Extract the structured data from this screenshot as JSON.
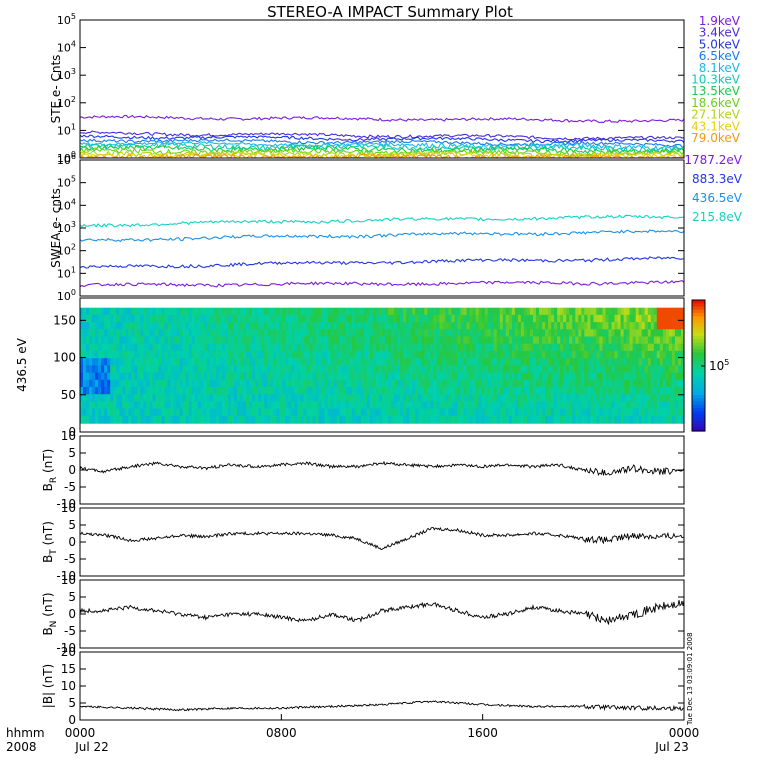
{
  "title": "STEREO-A IMPACT Summary Plot",
  "side_note": "Tue Dec 13 03:09:01 2008",
  "colors": {
    "ste": [
      "#7d1be0",
      "#4a2bd8",
      "#2236e0",
      "#1a7be6",
      "#18b9e8",
      "#12c9b7",
      "#1ec94a",
      "#6ad11a",
      "#b5d614",
      "#e7cf15",
      "#ef9a10",
      "#e25a10"
    ],
    "swea": [
      "#7d1be0",
      "#2236e0",
      "#1a92e8",
      "#14d2c2"
    ]
  },
  "time_axis": {
    "year_label": "hhmm",
    "year": "2008",
    "ticks": [
      {
        "label": "0000",
        "date": "Jul 22"
      },
      {
        "label": "0800",
        "date": ""
      },
      {
        "label": "1600",
        "date": ""
      },
      {
        "label": "0000",
        "date": "Jul 23"
      }
    ]
  },
  "chart_data": [
    {
      "type": "line",
      "name": "ste",
      "ylabel": "STE e- Cnts",
      "yscale": "log",
      "ylim": [
        1,
        100000
      ],
      "ytick_exponents": [
        "0",
        "1",
        "2",
        "3",
        "4",
        "5"
      ],
      "series": [
        {
          "name": "1.9keV",
          "level": 30,
          "end_level": 22
        },
        {
          "name": "3.4keV",
          "level": 8,
          "end_level": 5
        },
        {
          "name": "5.0keV",
          "level": 6,
          "end_level": 4
        },
        {
          "name": "6.5keV",
          "level": 4.5,
          "end_level": 3
        },
        {
          "name": "8.1keV",
          "level": 3.5,
          "end_level": 2.5
        },
        {
          "name": "10.3keV",
          "level": 2.8,
          "end_level": 2.2
        },
        {
          "name": "13.5keV",
          "level": 2.3,
          "end_level": 1.8
        },
        {
          "name": "18.6keV",
          "level": 1.8,
          "end_level": 1.5
        },
        {
          "name": "27.1keV",
          "level": 1.5,
          "end_level": 1.3
        },
        {
          "name": "43.1keV",
          "level": 1.3,
          "end_level": 1.2
        },
        {
          "name": "79.0keV",
          "level": 1.1,
          "end_level": 1.05
        }
      ]
    },
    {
      "type": "line",
      "name": "swea",
      "ylabel": "SWEA e- cnts",
      "yscale": "log",
      "ylim": [
        1,
        1000000
      ],
      "ytick_exponents": [
        "0",
        "1",
        "2",
        "3",
        "4",
        "5",
        "6"
      ],
      "series": [
        {
          "name": "1787.2eV",
          "level": 3,
          "end_level": 4
        },
        {
          "name": "883.3eV",
          "level": 18,
          "end_level": 45
        },
        {
          "name": "436.5eV",
          "level": 280,
          "end_level": 700
        },
        {
          "name": "215.8eV",
          "level": 1300,
          "end_level": 3200
        }
      ]
    },
    {
      "type": "heatmap",
      "name": "pitch-angle",
      "ylabel": "436.5 eV",
      "ylim": [
        0,
        180
      ],
      "yticks": [
        "0",
        "50",
        "100",
        "150"
      ],
      "colorbar_label": "10",
      "colorbar_exp": "5"
    },
    {
      "type": "line",
      "name": "br",
      "ylabel": "B",
      "ylabel_sub": "R",
      "ylabel_unit": "(nT)",
      "ylim": [
        -10,
        10
      ],
      "yticks": [
        "10",
        "5",
        "0",
        "-5",
        "-10"
      ],
      "knots": [
        [
          0,
          0.5
        ],
        [
          1,
          -0.5
        ],
        [
          2,
          1
        ],
        [
          3,
          2
        ],
        [
          4,
          1
        ],
        [
          5,
          0.5
        ],
        [
          6,
          1.5
        ],
        [
          7,
          1
        ],
        [
          8,
          1.5
        ],
        [
          9,
          2
        ],
        [
          10,
          1
        ],
        [
          11,
          1
        ],
        [
          12,
          2
        ],
        [
          13,
          1.5
        ],
        [
          14,
          1
        ],
        [
          15,
          1.5
        ],
        [
          16,
          1
        ],
        [
          17,
          1.5
        ],
        [
          18,
          1
        ],
        [
          19,
          1.5
        ],
        [
          20,
          0
        ],
        [
          21,
          -1
        ],
        [
          22,
          0.5
        ],
        [
          23,
          -0.5
        ],
        [
          24,
          0
        ]
      ]
    },
    {
      "type": "line",
      "name": "bt",
      "ylabel": "B",
      "ylabel_sub": "T",
      "ylabel_unit": "(nT)",
      "ylim": [
        -10,
        10
      ],
      "yticks": [
        "10",
        "5",
        "0",
        "-5",
        "-10"
      ],
      "knots": [
        [
          0,
          2.5
        ],
        [
          1,
          2
        ],
        [
          2,
          0.5
        ],
        [
          3,
          1
        ],
        [
          4,
          2
        ],
        [
          5,
          1.5
        ],
        [
          6,
          2.5
        ],
        [
          7,
          2.5
        ],
        [
          8,
          2.5
        ],
        [
          9,
          2.5
        ],
        [
          10,
          2
        ],
        [
          11,
          1
        ],
        [
          12,
          -2
        ],
        [
          13,
          1
        ],
        [
          14,
          4
        ],
        [
          15,
          3.5
        ],
        [
          16,
          2
        ],
        [
          17,
          2
        ],
        [
          18,
          2.5
        ],
        [
          19,
          2
        ],
        [
          20,
          1
        ],
        [
          21,
          0.5
        ],
        [
          22,
          2
        ],
        [
          23,
          1.5
        ],
        [
          24,
          2
        ]
      ]
    },
    {
      "type": "line",
      "name": "bn",
      "ylabel": "B",
      "ylabel_sub": "N",
      "ylabel_unit": "(nT)",
      "ylim": [
        -10,
        10
      ],
      "yticks": [
        "10",
        "5",
        "0",
        "-5",
        "-10"
      ],
      "knots": [
        [
          0,
          1
        ],
        [
          1,
          1
        ],
        [
          2,
          2
        ],
        [
          3,
          1
        ],
        [
          4,
          0
        ],
        [
          5,
          -1
        ],
        [
          6,
          0
        ],
        [
          7,
          0
        ],
        [
          8,
          -1
        ],
        [
          9,
          -2
        ],
        [
          10,
          0
        ],
        [
          11,
          -2
        ],
        [
          12,
          1
        ],
        [
          13,
          2
        ],
        [
          14,
          3
        ],
        [
          15,
          1
        ],
        [
          16,
          -1
        ],
        [
          17,
          0
        ],
        [
          18,
          2
        ],
        [
          19,
          1
        ],
        [
          20,
          0
        ],
        [
          21,
          -2
        ],
        [
          22,
          0
        ],
        [
          23,
          2
        ],
        [
          24,
          3
        ]
      ]
    },
    {
      "type": "line",
      "name": "btot",
      "ylabel": "|B| (nT)",
      "ylim": [
        0,
        20
      ],
      "yticks": [
        "20",
        "15",
        "10",
        "5",
        "0"
      ],
      "knots": [
        [
          0,
          4
        ],
        [
          2,
          3.5
        ],
        [
          4,
          3
        ],
        [
          6,
          3.5
        ],
        [
          8,
          3.5
        ],
        [
          10,
          4
        ],
        [
          12,
          4.5
        ],
        [
          13,
          5
        ],
        [
          14,
          5.5
        ],
        [
          16,
          4.5
        ],
        [
          18,
          4
        ],
        [
          20,
          4
        ],
        [
          22,
          3.5
        ],
        [
          24,
          3.5
        ]
      ]
    }
  ]
}
